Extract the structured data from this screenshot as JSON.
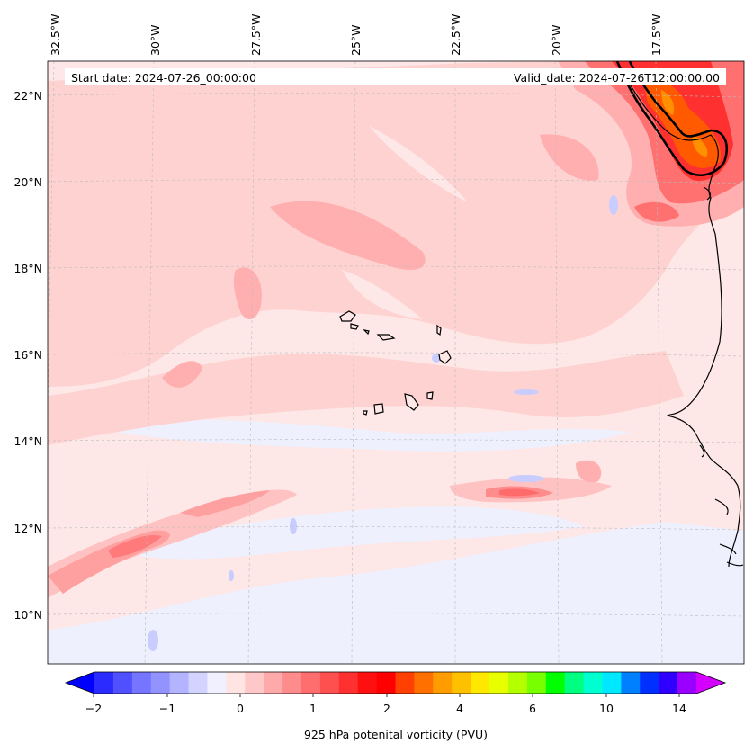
{
  "header": {
    "start_date": "Start date: 2024-07-26_00:00:00",
    "valid_date": "Valid_date: 2024-07-26T12:00:00.00"
  },
  "map": {
    "lon_labels": [
      "32.5°W",
      "30°W",
      "27.5°W",
      "25°W",
      "22.5°W",
      "20°W",
      "17.5°W"
    ],
    "lat_labels": [
      "22°N",
      "20°N",
      "18°N",
      "16°N",
      "14°N",
      "12°N",
      "10°N"
    ],
    "gridlines": "dashed",
    "background_color": "#fde7e7"
  },
  "colorbar": {
    "label": "925 hPa potenital vorticity (PVU)",
    "tick_labels": [
      "−2",
      "−1",
      "0",
      "1",
      "2",
      "4",
      "6",
      "10",
      "14"
    ],
    "colors": [
      "#0000ff",
      "#2b2bff",
      "#5050ff",
      "#7575ff",
      "#9393ff",
      "#b3b3ff",
      "#d3d3ff",
      "#f0f0ff",
      "#ffe4e4",
      "#ffc8c8",
      "#ffaaaa",
      "#ff8c8c",
      "#ff6e6e",
      "#ff5050",
      "#ff3030",
      "#ff1010",
      "#ff0000",
      "#ff4000",
      "#ff7000",
      "#ff9c00",
      "#ffc000",
      "#ffe800",
      "#e8ff00",
      "#b4ff00",
      "#78ff00",
      "#00ff00",
      "#00ff80",
      "#00ffd0",
      "#00e8ff",
      "#0080ff",
      "#0030ff",
      "#3000ff",
      "#9a00ff",
      "#d400ff"
    ]
  }
}
